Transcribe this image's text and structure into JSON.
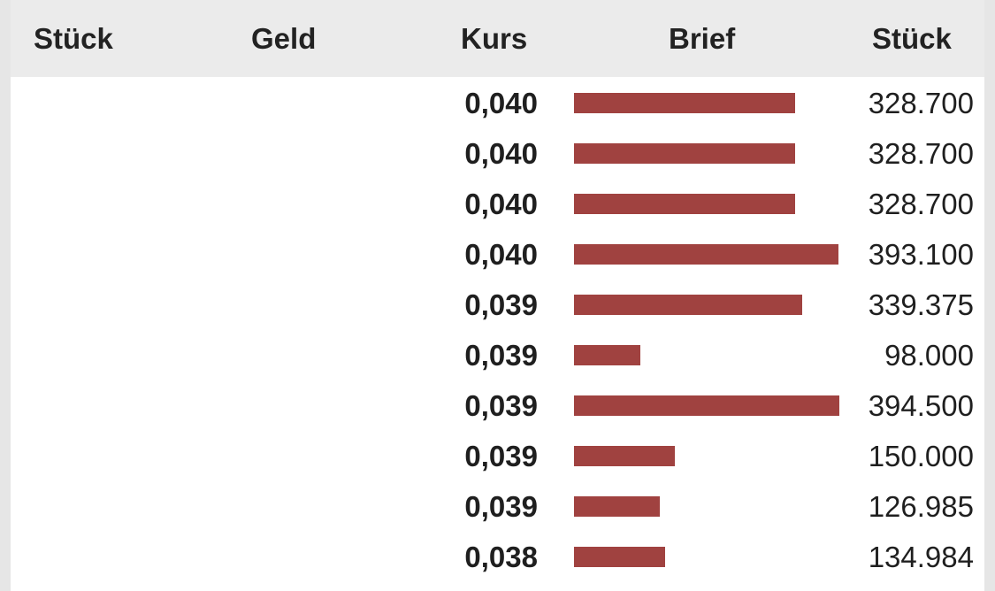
{
  "header": {
    "col_stueck_left": "Stück",
    "col_geld": "Geld",
    "col_kurs": "Kurs",
    "col_brief": "Brief",
    "col_stueck_right": "Stück"
  },
  "colors": {
    "brief_bar": "#a04240",
    "header_bg": "#ebebeb"
  },
  "rows": [
    {
      "kurs": "0,040",
      "stueck": "328.700",
      "brief_volume": 328700
    },
    {
      "kurs": "0,040",
      "stueck": "328.700",
      "brief_volume": 328700
    },
    {
      "kurs": "0,040",
      "stueck": "328.700",
      "brief_volume": 328700
    },
    {
      "kurs": "0,040",
      "stueck": "393.100",
      "brief_volume": 393100
    },
    {
      "kurs": "0,039",
      "stueck": "339.375",
      "brief_volume": 339375
    },
    {
      "kurs": "0,039",
      "stueck": "98.000",
      "brief_volume": 98000
    },
    {
      "kurs": "0,039",
      "stueck": "394.500",
      "brief_volume": 394500
    },
    {
      "kurs": "0,039",
      "stueck": "150.000",
      "brief_volume": 150000
    },
    {
      "kurs": "0,039",
      "stueck": "126.985",
      "brief_volume": 126985
    },
    {
      "kurs": "0,038",
      "stueck": "134.984",
      "brief_volume": 134984
    }
  ]
}
